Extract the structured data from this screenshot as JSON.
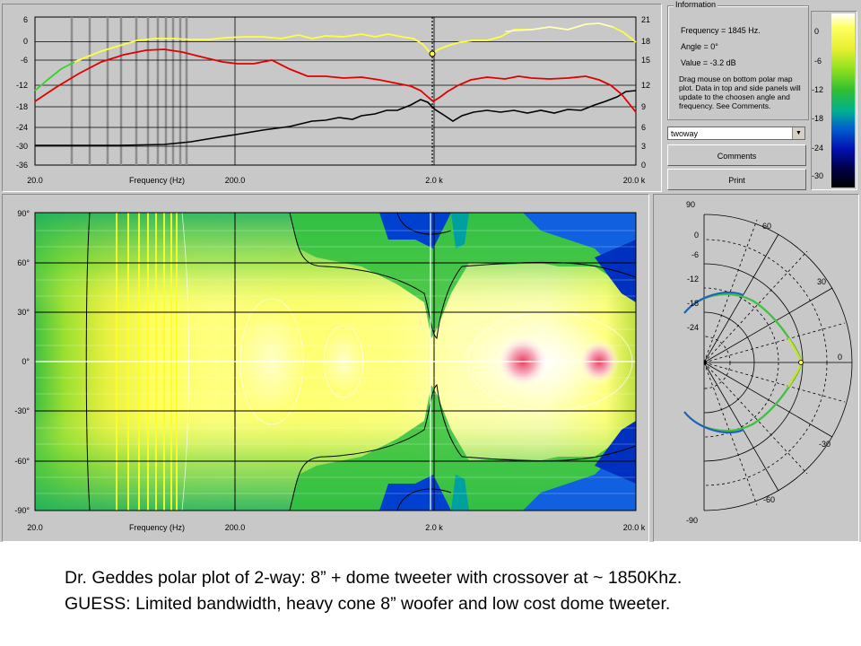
{
  "top_plot": {
    "y_left_ticks": [
      "6",
      "0",
      "-6",
      "-12",
      "-18",
      "-24",
      "-30",
      "-36"
    ],
    "y_right_ticks": [
      "21",
      "18",
      "15",
      "12",
      "9",
      "6",
      "3",
      "0"
    ],
    "x_ticks": [
      "20.0",
      "200.0",
      "2.0 k",
      "20.0 k"
    ],
    "x_label": "Frequency (Hz)"
  },
  "info_panel": {
    "legend": "Information",
    "frequency": "Frequency = 1845 Hz.",
    "angle": "Angle = 0°",
    "value": "Value = -3.2 dB",
    "note": "Drag mouse on bottom polar map plot.  Data in top and side panels will update to the choosen angle and frequency.  See Comments."
  },
  "colorbar": {
    "ticks": [
      "0",
      "-6",
      "-12",
      "-18",
      "-24",
      "-30"
    ]
  },
  "controls": {
    "dropdown_value": "twoway",
    "comments_label": "Comments",
    "print_label": "Print"
  },
  "polar_map": {
    "y_ticks": [
      "90°",
      "60°",
      "30°",
      "0°",
      "-30°",
      "-60°",
      "-90°"
    ],
    "x_ticks": [
      "20.0",
      "200.0",
      "2.0 k",
      "20.0 k"
    ],
    "x_label": "Frequency (Hz)"
  },
  "polar_plot": {
    "radial_ticks": [
      "0",
      "-6",
      "-12",
      "-18",
      "-24"
    ],
    "angle_labels": [
      "90",
      "60",
      "30",
      "0",
      "-30",
      "-60",
      "-90"
    ]
  },
  "caption": {
    "line1": "Dr. Geddes polar plot of 2-way:  8” + dome tweeter with crossover at ~ 1850Khz.",
    "line2": "GUESS: Limited bandwidth, heavy cone 8” woofer and low cost dome tweeter."
  },
  "colors": {
    "panel_bg": "#c8c8c8",
    "curve_on_axis": "#ffff40",
    "curve_ratio": "#e00000",
    "curve_di": "#000000"
  }
}
